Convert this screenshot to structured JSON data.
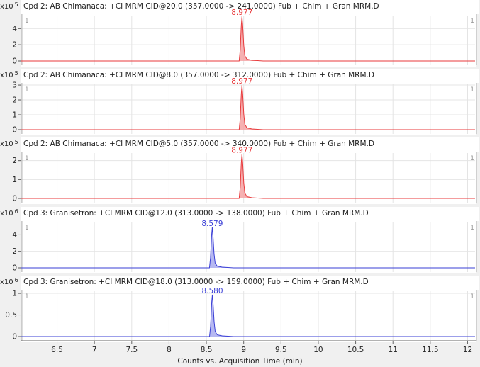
{
  "chart_data": {
    "type": "line",
    "xlabel": "Counts vs. Acquisition Time (min)",
    "xlim": [
      6.02,
      12.1
    ],
    "x_ticks": [
      6.5,
      7,
      7.5,
      8,
      8.5,
      9,
      9.5,
      10,
      10.5,
      11,
      11.5,
      12
    ],
    "grid": true,
    "panels": [
      {
        "title": "Cpd 2: AB Chimanaca: +CI MRM CID@20.0 (357.0000 -> 241.0000) Fub + Chim + Gran MRM.D",
        "exponent": "5",
        "ylim": [
          0,
          5.6
        ],
        "y_ticks": [
          0,
          2,
          4
        ],
        "color": "#e8393b",
        "fill": "#f5a3a4",
        "peak_label": "8.977",
        "peak_rt": 8.977,
        "peak_height": 5.5,
        "left_marker": "1",
        "right_marker": "1"
      },
      {
        "title": "Cpd 2: AB Chimanaca: +CI MRM CID@8.0 (357.0000 -> 312.0000) Fub + Chim + Gran MRM.D",
        "exponent": "5",
        "ylim": [
          0,
          3.05
        ],
        "y_ticks": [
          0,
          1,
          2,
          3
        ],
        "color": "#e8393b",
        "fill": "#f5a3a4",
        "peak_label": "8.977",
        "peak_rt": 8.977,
        "peak_height": 3.0,
        "left_marker": "1",
        "right_marker": "1"
      },
      {
        "title": "Cpd 2: AB Chimanaca: +CI MRM CID@5.0 (357.0000 -> 340.0000) Fub + Chim + Gran MRM.D",
        "exponent": "5",
        "ylim": [
          0,
          2.4
        ],
        "y_ticks": [
          0,
          1,
          2
        ],
        "color": "#e8393b",
        "fill": "#f5a3a4",
        "peak_label": "8.977",
        "peak_rt": 8.977,
        "peak_height": 2.35,
        "left_marker": "1",
        "right_marker": "1"
      },
      {
        "title": "Cpd 3: Granisetron: +CI MRM CID@12.0 (313.0000 -> 138.0000) Fub + Chim + Gran MRM.D",
        "exponent": "6",
        "ylim": [
          0,
          5.5
        ],
        "y_ticks": [
          0,
          2,
          4
        ],
        "color": "#3a3fd6",
        "fill": "#a9abee",
        "peak_label": "8.579",
        "peak_rt": 8.579,
        "peak_height": 4.9,
        "left_marker": "1",
        "right_marker": "1"
      },
      {
        "title": "Cpd 3: Granisetron: +CI MRM CID@18.0 (313.0000 -> 159.0000) Fub + Chim + Gran MRM.D",
        "exponent": "6",
        "ylim": [
          0,
          1.05
        ],
        "y_ticks": [
          0,
          0.5,
          1
        ],
        "color": "#3a3fd6",
        "fill": "#a9abee",
        "peak_label": "8.580",
        "peak_rt": 8.58,
        "peak_height": 0.97,
        "left_marker": "1",
        "right_marker": "1"
      }
    ]
  },
  "axis": {
    "exponent_prefix": "x10"
  }
}
